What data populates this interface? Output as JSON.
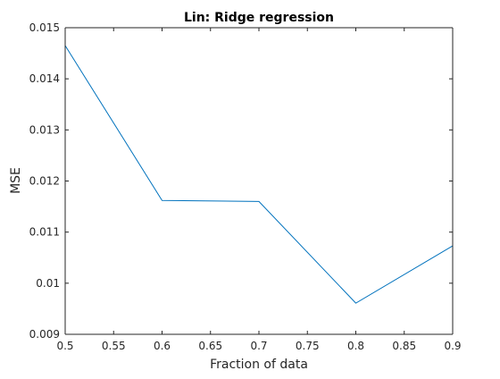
{
  "chart_data": {
    "type": "line",
    "title": "Lin: Ridge regression",
    "xlabel": "Fraction of data",
    "ylabel": "MSE",
    "xlim": [
      0.5,
      0.9
    ],
    "ylim": [
      0.009,
      0.015
    ],
    "x_ticks": [
      "0.5",
      "0.55",
      "0.6",
      "0.65",
      "0.7",
      "0.75",
      "0.8",
      "0.85",
      "0.9"
    ],
    "y_ticks": [
      "0.009",
      "0.01",
      "0.011",
      "0.012",
      "0.013",
      "0.014",
      "0.015"
    ],
    "x_tick_values": [
      0.5,
      0.55,
      0.6,
      0.65,
      0.7,
      0.75,
      0.8,
      0.85,
      0.9
    ],
    "y_tick_values": [
      0.009,
      0.01,
      0.011,
      0.012,
      0.013,
      0.014,
      0.015
    ],
    "grid": false,
    "series": [
      {
        "color": "#0072BD",
        "x": [
          0.5,
          0.6,
          0.7,
          0.8,
          0.9
        ],
        "y": [
          0.01465,
          0.01162,
          0.0116,
          0.00961,
          0.01073
        ]
      }
    ]
  }
}
